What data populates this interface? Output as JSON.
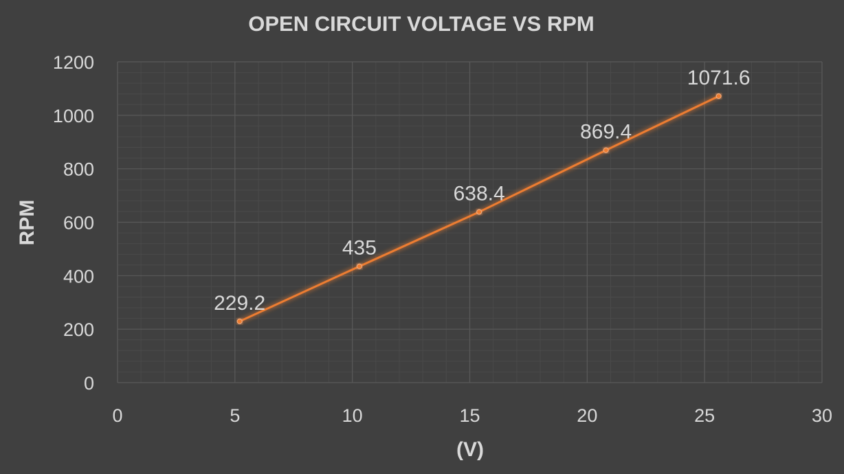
{
  "chart_data": {
    "type": "line",
    "title": "OPEN CIRCUIT VOLTAGE VS RPM",
    "xlabel": "(V)",
    "ylabel": "RPM",
    "xlim": [
      0,
      30
    ],
    "ylim": [
      0,
      1200
    ],
    "xticks": [
      0,
      5,
      10,
      15,
      20,
      25,
      30
    ],
    "yticks": [
      0,
      200,
      400,
      600,
      800,
      1000,
      1200
    ],
    "grid": true,
    "minor_grid": true,
    "legend": "none",
    "series": [
      {
        "color": "#ed7d31",
        "marker": true,
        "points": [
          {
            "x": 5.2,
            "y": 229.2,
            "label": "229.2"
          },
          {
            "x": 10.3,
            "y": 435,
            "label": "435"
          },
          {
            "x": 15.4,
            "y": 638.4,
            "label": "638.4"
          },
          {
            "x": 20.8,
            "y": 869.4,
            "label": "869.4"
          },
          {
            "x": 25.6,
            "y": 1071.6,
            "label": "1071.6"
          }
        ]
      }
    ]
  },
  "colors": {
    "background": "#404040",
    "major_grid": "#5a5a5a",
    "minor_grid": "#4a4a4a",
    "text": "#d9d9d9",
    "series": "#ed7d31"
  }
}
